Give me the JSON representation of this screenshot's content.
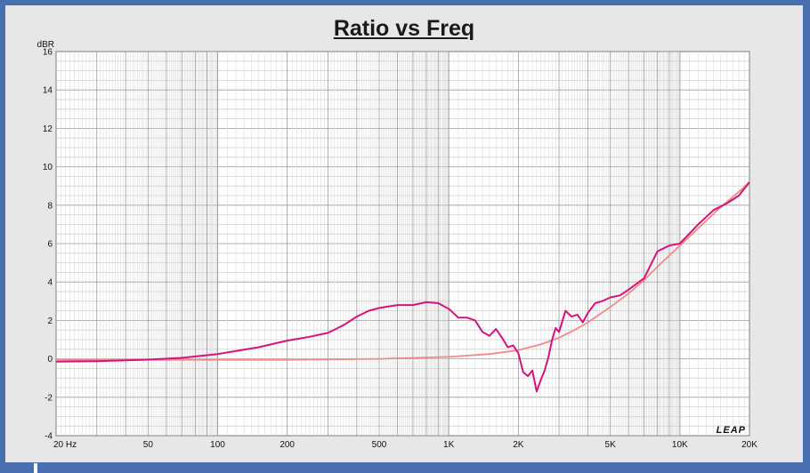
{
  "chart_data": {
    "type": "line",
    "title": "Ratio vs Freq",
    "ylabel_unit": "dBR",
    "x_scale": "log",
    "xlim": [
      20,
      20000
    ],
    "ylim": [
      -4,
      16
    ],
    "grid": true,
    "x_tick_labels": [
      {
        "value": 20,
        "label": "20  Hz"
      },
      {
        "value": 50,
        "label": "50"
      },
      {
        "value": 100,
        "label": "100"
      },
      {
        "value": 200,
        "label": "200"
      },
      {
        "value": 500,
        "label": "500"
      },
      {
        "value": 1000,
        "label": "1K"
      },
      {
        "value": 2000,
        "label": "2K"
      },
      {
        "value": 5000,
        "label": "5K"
      },
      {
        "value": 10000,
        "label": "10K"
      },
      {
        "value": 20000,
        "label": "20K"
      }
    ],
    "y_ticks": [
      16,
      14,
      12,
      10,
      8,
      6,
      4,
      2,
      0,
      -2,
      -4
    ],
    "series": [
      {
        "color": "#d4147a",
        "x": [
          20,
          30,
          40,
          50,
          70,
          100,
          150,
          200,
          250,
          300,
          350,
          400,
          450,
          500,
          600,
          700,
          800,
          900,
          1000,
          1100,
          1200,
          1300,
          1400,
          1500,
          1600,
          1700,
          1800,
          1900,
          2000,
          2100,
          2200,
          2300,
          2400,
          2500,
          2600,
          2700,
          2800,
          2900,
          3000,
          3200,
          3400,
          3600,
          3800,
          4000,
          4300,
          4600,
          5000,
          5500,
          6000,
          7000,
          8000,
          9000,
          10000,
          12000,
          14000,
          16000,
          18000,
          20000
        ],
        "y": [
          -0.15,
          -0.12,
          -0.08,
          -0.04,
          0.05,
          0.25,
          0.6,
          0.95,
          1.15,
          1.35,
          1.75,
          2.2,
          2.5,
          2.65,
          2.8,
          2.8,
          2.95,
          2.9,
          2.6,
          2.15,
          2.15,
          2.0,
          1.4,
          1.2,
          1.55,
          1.1,
          0.6,
          0.7,
          0.3,
          -0.7,
          -0.9,
          -0.6,
          -1.7,
          -1.1,
          -0.6,
          0.1,
          1.0,
          1.6,
          1.4,
          2.5,
          2.2,
          2.3,
          1.9,
          2.4,
          2.9,
          3.0,
          3.2,
          3.3,
          3.6,
          4.2,
          5.6,
          5.9,
          6.0,
          7.0,
          7.75,
          8.1,
          8.5,
          9.2
        ]
      },
      {
        "color": "#ef8a8a",
        "x": [
          20,
          50,
          100,
          200,
          500,
          1000,
          1500,
          2000,
          2500,
          3000,
          3500,
          4000,
          5000,
          6000,
          7000,
          8000,
          10000,
          12000,
          15000,
          18000,
          20000
        ],
        "y": [
          -0.05,
          -0.05,
          -0.05,
          -0.05,
          0.0,
          0.1,
          0.25,
          0.45,
          0.75,
          1.1,
          1.5,
          1.9,
          2.7,
          3.4,
          4.1,
          4.8,
          5.9,
          6.8,
          7.9,
          8.7,
          9.2
        ]
      }
    ],
    "logo": "LEAP"
  }
}
